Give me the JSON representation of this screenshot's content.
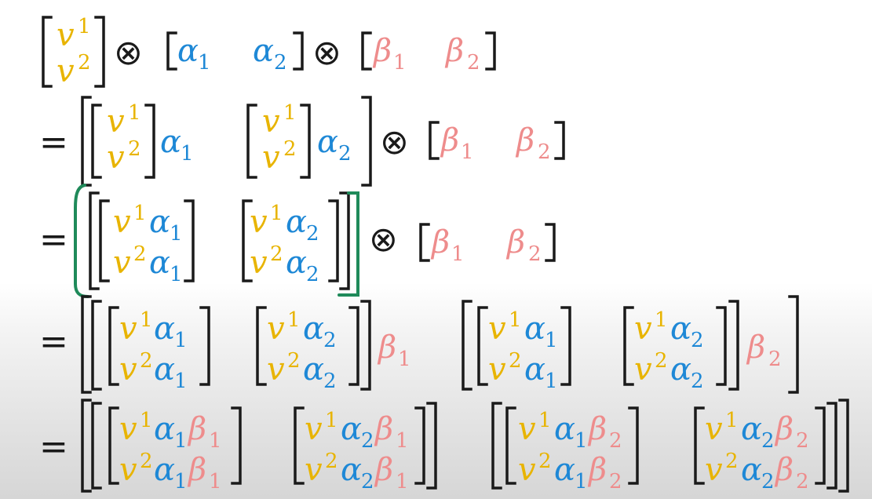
{
  "symbols": {
    "v": "v",
    "alpha": "α",
    "beta": "β",
    "one": "1",
    "two": "2",
    "equals": "=",
    "tensor": "⊗"
  },
  "colors": {
    "v": "#e8b400",
    "alpha": "#1e88d6",
    "beta": "#ee8c8c",
    "ink": "#1a1a1a",
    "highlight": "#1f8a5a"
  }
}
